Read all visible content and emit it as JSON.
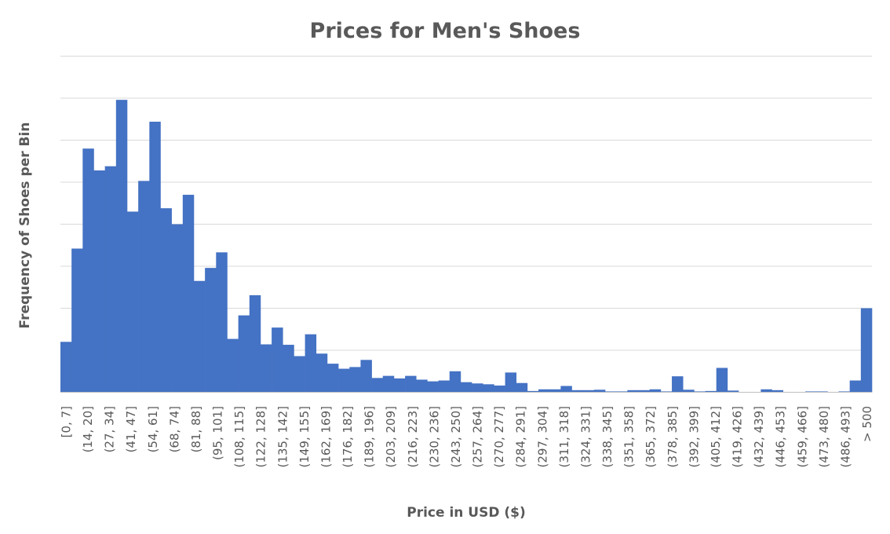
{
  "chart_data": {
    "type": "bar",
    "title": "Prices for Men's Shoes",
    "xlabel": "Price in USD ($)",
    "ylabel": "Frequency of Shoes per Bin",
    "bar_color": "#4472c4",
    "grid": true,
    "ylim": [
      0,
      8
    ],
    "y_gridlines": [
      1,
      2,
      3,
      4,
      5,
      6,
      7,
      8
    ],
    "tick_labels": [
      "[0, 7]",
      "(14, 20]",
      "(27, 34]",
      "(41, 47]",
      "(54, 61]",
      "(68, 74]",
      "(81, 88]",
      "(95, 101]",
      "(108, 115]",
      "(122, 128]",
      "(135, 142]",
      "(149, 155]",
      "(162, 169]",
      "(176, 182]",
      "(189, 196]",
      "(203, 209]",
      "(216, 223]",
      "(230, 236]",
      "(243, 250]",
      "(257, 264]",
      "(270, 277]",
      "(284, 291]",
      "(297, 304]",
      "(311, 318]",
      "(324, 331]",
      "(338, 345]",
      "(351, 358]",
      "(365, 372]",
      "(378, 385]",
      "(392, 399]",
      "(405, 412]",
      "(419, 426]",
      "(432, 439]",
      "(446, 453]",
      "(459, 466]",
      "(473, 480]",
      "(486, 493]",
      "> 500"
    ],
    "values": [
      1.2,
      3.42,
      5.8,
      5.28,
      5.38,
      6.96,
      4.3,
      5.03,
      6.44,
      4.38,
      4.0,
      4.7,
      2.65,
      2.96,
      3.33,
      1.27,
      1.83,
      2.31,
      1.14,
      1.54,
      1.13,
      0.86,
      1.38,
      0.92,
      0.68,
      0.56,
      0.6,
      0.77,
      0.34,
      0.39,
      0.33,
      0.39,
      0.3,
      0.26,
      0.28,
      0.5,
      0.24,
      0.21,
      0.19,
      0.16,
      0.47,
      0.22,
      0.03,
      0.07,
      0.07,
      0.15,
      0.05,
      0.05,
      0.06,
      0.02,
      0.02,
      0.05,
      0.05,
      0.07,
      0.02,
      0.38,
      0.06,
      0.02,
      0.03,
      0.58,
      0.04,
      0.0,
      0.0,
      0.07,
      0.05,
      0.0,
      0.0,
      0.02,
      0.02,
      0.0,
      0.02,
      0.28,
      2.0
    ]
  }
}
